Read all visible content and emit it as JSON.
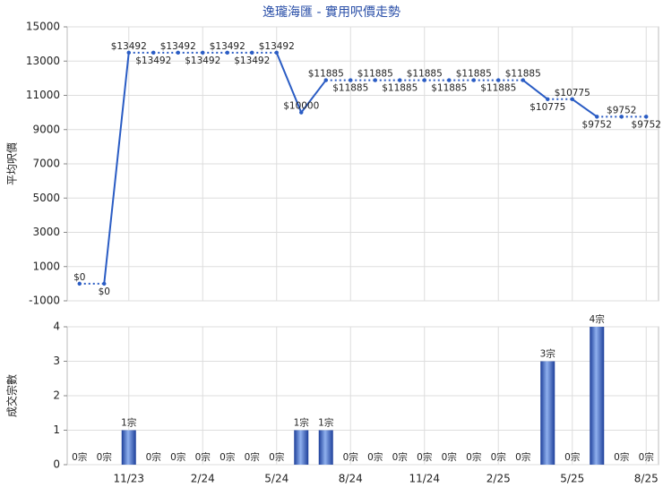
{
  "chart_data": [
    {
      "type": "line",
      "title": "逸瓏海匯 - 實用呎價走勢",
      "ylabel": "平均呎價",
      "categories": [
        null,
        null,
        "11/23",
        null,
        null,
        "2/24",
        null,
        null,
        "5/24",
        null,
        null,
        "8/24",
        null,
        null,
        "11/24",
        null,
        null,
        "2/25",
        null,
        null,
        "5/25",
        null,
        null,
        "8/25"
      ],
      "series": [
        {
          "name": "平均呎價",
          "color": "#2a5cc4",
          "values": [
            0,
            0,
            13492,
            13492,
            13492,
            13492,
            13492,
            13492,
            13492,
            10000,
            11885,
            11885,
            11885,
            11885,
            11885,
            11885,
            11885,
            11885,
            11885,
            10775,
            10775,
            9752,
            9752,
            9752
          ],
          "value_labels": [
            "$0",
            "$0",
            "$13492",
            "$13492",
            "$13492",
            "$13492",
            "$13492",
            "$13492",
            "$13492",
            "$10000",
            "$11885",
            "$11885",
            "$11885",
            "$11885",
            "$11885",
            "$11885",
            "$11885",
            "$11885",
            "$11885",
            "$10775",
            "$10775",
            "$9752",
            "$9752",
            "$9752"
          ]
        }
      ],
      "ylim": [
        -1000,
        15000
      ],
      "yticks": [
        -1000,
        1000,
        3000,
        5000,
        7000,
        9000,
        11000,
        13000,
        15000
      ],
      "grid": true
    },
    {
      "type": "bar",
      "ylabel": "成交宗數",
      "color": "#3a64c8",
      "categories": [
        null,
        null,
        "11/23",
        null,
        null,
        "2/24",
        null,
        null,
        "5/24",
        null,
        null,
        "8/24",
        null,
        null,
        "11/24",
        null,
        null,
        "2/25",
        null,
        null,
        "5/25",
        null,
        null,
        "8/25"
      ],
      "values": [
        0,
        0,
        1,
        0,
        0,
        0,
        0,
        0,
        0,
        1,
        1,
        0,
        0,
        0,
        0,
        0,
        0,
        0,
        0,
        3,
        0,
        4,
        0,
        0
      ],
      "value_labels": [
        "0宗",
        "0宗",
        "1宗",
        "0宗",
        "0宗",
        "0宗",
        "0宗",
        "0宗",
        "0宗",
        "1宗",
        "1宗",
        "0宗",
        "0宗",
        "0宗",
        "0宗",
        "0宗",
        "0宗",
        "0宗",
        "0宗",
        "3宗",
        "0宗",
        "4宗",
        "0宗",
        "0宗"
      ],
      "ylim": [
        0,
        4
      ],
      "yticks": [
        0,
        1,
        2,
        3,
        4
      ],
      "grid": true
    }
  ]
}
